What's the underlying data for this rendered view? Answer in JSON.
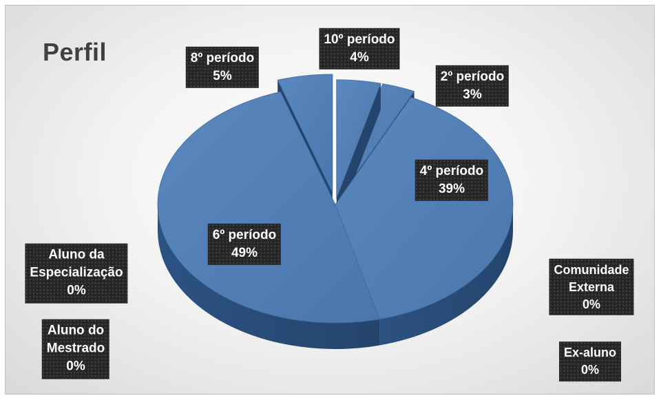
{
  "chart_data": {
    "type": "pie",
    "title": "Perfil",
    "slices": [
      {
        "label": "10º período",
        "value": 4,
        "value_label": "4%"
      },
      {
        "label": "2º período",
        "value": 3,
        "value_label": "3%"
      },
      {
        "label": "4º período",
        "value": 39,
        "value_label": "39%"
      },
      {
        "label": "Comunidade Externa",
        "value": 0,
        "value_label": "0%"
      },
      {
        "label": "Ex-aluno",
        "value": 0,
        "value_label": "0%"
      },
      {
        "label": "6º período",
        "value": 49,
        "value_label": "49%"
      },
      {
        "label": "Aluno do Mestrado",
        "value": 0,
        "value_label": "0%"
      },
      {
        "label": "Aluno da Especialização",
        "value": 0,
        "value_label": "0%"
      },
      {
        "label": "8º período",
        "value": 5,
        "value_label": "5%"
      }
    ],
    "legend": "none",
    "style": "3d-exploded",
    "colors": {
      "slice": "#4a76ac",
      "slice_side": "#24446c",
      "label_bg": "#262626",
      "label_text": "#ffffff",
      "title": "#404040"
    }
  }
}
